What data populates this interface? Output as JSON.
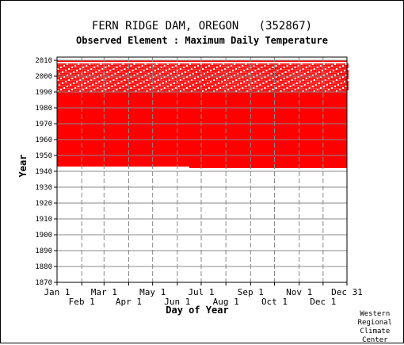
{
  "chart_data": {
    "type": "heatmap",
    "title": "FERN RIDGE DAM, OREGON   (352867)",
    "subtitle": "Observed Element : Maximum Daily Temperature",
    "xlabel": "Day of Year",
    "ylabel": "Year",
    "x_range_days": [
      1,
      365
    ],
    "ylim": [
      1870,
      2012
    ],
    "y_ticks": [
      1870,
      1880,
      1890,
      1900,
      1910,
      1920,
      1930,
      1940,
      1950,
      1960,
      1970,
      1980,
      1990,
      2000,
      2010
    ],
    "x_ticks_top_row": [
      {
        "label": "Jan 1",
        "day": 1
      },
      {
        "label": "Mar 1",
        "day": 60
      },
      {
        "label": "May 1",
        "day": 121
      },
      {
        "label": "Jul 1",
        "day": 182
      },
      {
        "label": "Sep 1",
        "day": 244
      },
      {
        "label": "Nov 1",
        "day": 305
      },
      {
        "label": "Dec 31",
        "day": 365
      }
    ],
    "x_ticks_bottom_row": [
      {
        "label": "Feb 1",
        "day": 32
      },
      {
        "label": "Apr 1",
        "day": 91
      },
      {
        "label": "Jun 1",
        "day": 152
      },
      {
        "label": "Aug 1",
        "day": 213
      },
      {
        "label": "Oct 1",
        "day": 274
      },
      {
        "label": "Dec 1",
        "day": 335
      }
    ],
    "grid": true,
    "data_color": "#ff0000",
    "record": {
      "complete_years": [
        1943,
        1989
      ],
      "partial_years": [
        1990,
        2007
      ],
      "recent_year": 2009,
      "first_year_start_day": 167
    }
  },
  "credit": [
    "Western",
    "Regional",
    "Climate",
    "Center"
  ]
}
